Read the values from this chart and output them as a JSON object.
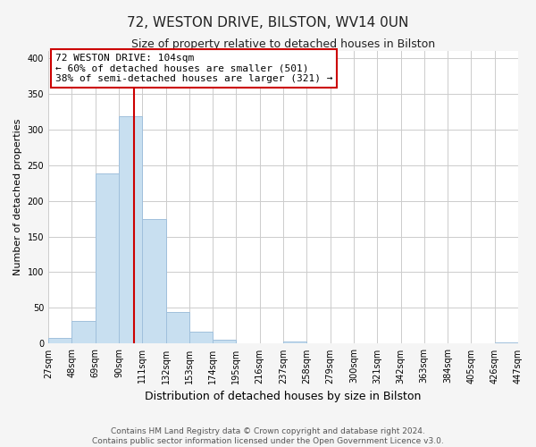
{
  "title": "72, WESTON DRIVE, BILSTON, WV14 0UN",
  "subtitle": "Size of property relative to detached houses in Bilston",
  "xlabel": "Distribution of detached houses by size in Bilston",
  "ylabel": "Number of detached properties",
  "bins": [
    27,
    48,
    69,
    90,
    111,
    132,
    153,
    174,
    195,
    216,
    237,
    258,
    279,
    300,
    321,
    342,
    363,
    384,
    405,
    426,
    447
  ],
  "counts": [
    8,
    32,
    238,
    318,
    175,
    44,
    17,
    5,
    1,
    0,
    3,
    0,
    0,
    0,
    0,
    0,
    0,
    0,
    0,
    2
  ],
  "bar_color": "#c8dff0",
  "bar_edge_color": "#a0c0dc",
  "vline_x": 104,
  "vline_color": "#cc0000",
  "ylim": [
    0,
    410
  ],
  "yticks": [
    0,
    50,
    100,
    150,
    200,
    250,
    300,
    350,
    400
  ],
  "annotation_title": "72 WESTON DRIVE: 104sqm",
  "annotation_line1": "← 60% of detached houses are smaller (501)",
  "annotation_line2": "38% of semi-detached houses are larger (321) →",
  "annotation_box_color": "#ffffff",
  "annotation_box_edge": "#cc0000",
  "footer1": "Contains HM Land Registry data © Crown copyright and database right 2024.",
  "footer2": "Contains public sector information licensed under the Open Government Licence v3.0.",
  "bg_color": "#f5f5f5",
  "plot_bg_color": "#ffffff",
  "grid_color": "#cccccc",
  "title_fontsize": 11,
  "subtitle_fontsize": 9,
  "ylabel_fontsize": 8,
  "xlabel_fontsize": 9,
  "tick_fontsize": 7,
  "footer_fontsize": 6.5,
  "ann_fontsize": 8
}
